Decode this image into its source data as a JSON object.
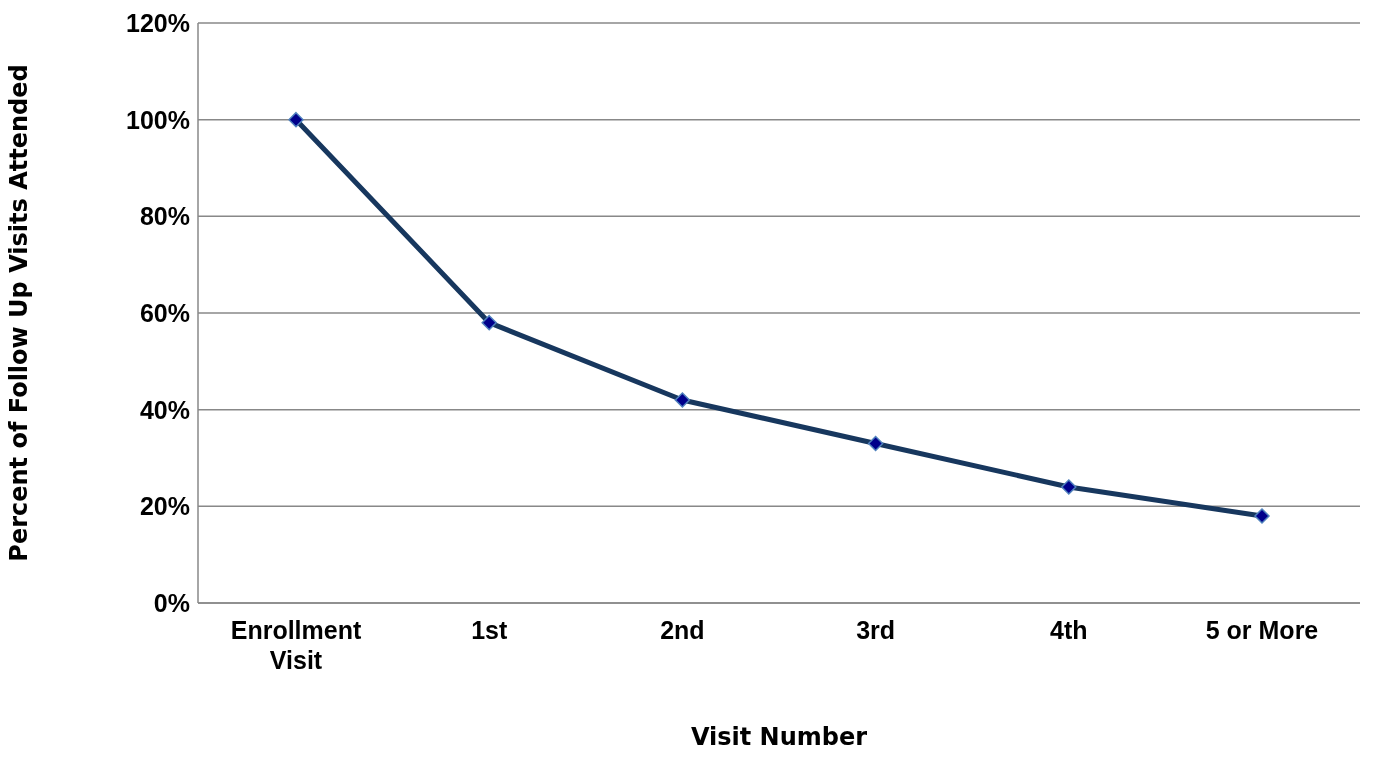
{
  "chart_data": {
    "type": "line",
    "xlabel": "Visit Number",
    "ylabel": "Percent of Follow Up Visits Attended",
    "categories": [
      "Enrollment Visit",
      "1st",
      "2nd",
      "3rd",
      "4th",
      "5 or More"
    ],
    "series": [
      {
        "color": "#17375e",
        "values": [
          100,
          58,
          42,
          33,
          24,
          18
        ]
      }
    ],
    "ylim": [
      0,
      120
    ],
    "yticks": [
      {
        "value": 0,
        "label": "0%"
      },
      {
        "value": 20,
        "label": "20%"
      },
      {
        "value": 40,
        "label": "40%"
      },
      {
        "value": 60,
        "label": "60%"
      },
      {
        "value": 80,
        "label": "80%"
      },
      {
        "value": 100,
        "label": "100%"
      },
      {
        "value": 120,
        "label": "120%"
      }
    ],
    "grid": "y",
    "legend": false,
    "marker": "diamond",
    "line_style": "solid"
  }
}
